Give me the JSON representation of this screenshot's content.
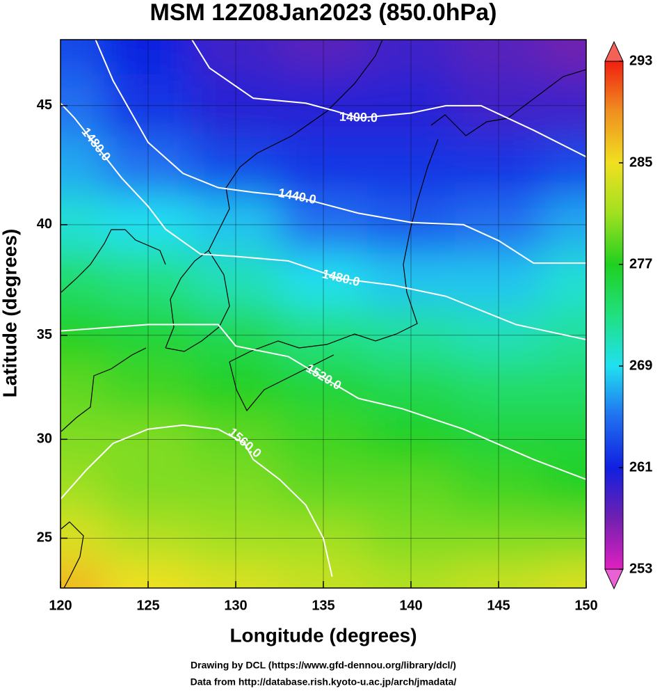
{
  "chart_data": {
    "type": "map",
    "title": "MSM 12Z08Jan2023 (850.0hPa)",
    "xlabel": "Longitude (degrees)",
    "ylabel": "Latitude  (degrees)",
    "footnotes": [
      "Drawing by DCL (https://www.gfd-dennou.org/library/dcl/)",
      "Data from http://database.rish.kyoto-u.ac.jp/arch/jmadata/"
    ],
    "projection": "mercator",
    "xlim": [
      120,
      150
    ],
    "ylim": [
      22.4,
      47.6
    ],
    "xticks": [
      120,
      125,
      130,
      135,
      140,
      145,
      150
    ],
    "yticks": [
      25,
      30,
      35,
      40,
      45
    ],
    "grid": true,
    "field": {
      "lons": [
        120,
        125,
        130,
        135,
        140,
        145,
        150
      ],
      "lats": [
        47.5,
        45,
        42.5,
        40,
        37.5,
        35,
        32.5,
        30,
        27.5,
        25,
        22.5
      ],
      "values": [
        [
          263,
          261,
          259,
          258,
          259,
          258,
          257
        ],
        [
          265,
          262,
          260,
          260,
          260,
          259,
          259
        ],
        [
          267,
          265,
          263,
          262,
          262,
          262,
          263
        ],
        [
          270,
          269,
          268,
          265,
          264,
          265,
          267
        ],
        [
          274,
          273,
          271,
          269,
          268,
          268,
          270
        ],
        [
          277,
          276,
          275,
          273,
          272,
          271,
          272
        ],
        [
          279,
          278,
          277,
          276,
          275,
          274,
          274
        ],
        [
          280,
          280,
          279,
          278,
          277,
          276,
          276
        ],
        [
          281,
          280,
          280,
          279,
          279,
          278,
          277
        ],
        [
          284,
          282,
          281,
          281,
          280,
          280,
          280
        ],
        [
          287,
          285,
          284,
          283,
          282,
          283,
          284
        ]
      ]
    },
    "colormap": [
      "#e020c0",
      "#7020b0",
      "#1020e0",
      "#2070f0",
      "#20e0f0",
      "#20e080",
      "#20d020",
      "#a0e020",
      "#f0e020",
      "#f09020",
      "#f02010"
    ],
    "colorbar_lim": [
      253,
      293
    ],
    "colorbar_ticks": [
      253,
      261,
      269,
      277,
      285,
      293
    ],
    "contour_color": "#ffffff",
    "contours": [
      {
        "level": 1400,
        "value_label": "1400.0",
        "x": [
          127.5,
          128.5,
          131,
          134,
          135.6,
          137,
          140,
          142,
          144,
          147,
          150
        ],
        "y": [
          47.6,
          46.5,
          45.3,
          45.1,
          44.8,
          44.5,
          44.7,
          45.0,
          45.0,
          44.0,
          42.9
        ]
      },
      {
        "level": 1440,
        "value_label": "1440.0",
        "x": [
          122,
          123,
          125,
          127,
          129,
          131,
          133.5,
          137,
          140,
          143,
          145,
          147,
          150
        ],
        "y": [
          47.6,
          46,
          43.5,
          42.2,
          41.6,
          41.4,
          41.2,
          40.5,
          40.1,
          40.0,
          39.3,
          38.3,
          38.3
        ]
      },
      {
        "level": 1480,
        "value_label": "1480.0",
        "x": [
          120,
          120.8,
          122,
          123.5,
          125
        ],
        "y": [
          45.1,
          44.5,
          43.4,
          42,
          40.8
        ]
      },
      {
        "level": 1480,
        "value_label": "1480.0",
        "x": [
          125,
          126,
          128,
          130,
          133,
          136,
          139,
          142,
          146,
          150
        ],
        "y": [
          40.8,
          39.8,
          38.7,
          38.6,
          38.4,
          37.6,
          37.3,
          36.8,
          35.5,
          34.8
        ]
      },
      {
        "level": 1520,
        "value_label": "1520.0",
        "x": [
          120,
          125,
          129,
          130,
          133,
          135,
          137,
          139.5,
          143,
          147,
          150
        ],
        "y": [
          35.2,
          35.5,
          35.5,
          34.5,
          34,
          33,
          32,
          31.5,
          30.5,
          29,
          28
        ]
      },
      {
        "level": 1560,
        "value_label": "1560.0",
        "x": [
          120,
          121.5,
          123,
          125,
          127,
          129,
          130.5,
          131,
          132.5,
          134,
          135,
          135.5
        ],
        "y": [
          27,
          28.5,
          29.8,
          30.5,
          30.7,
          30.5,
          29.8,
          29,
          28,
          26.7,
          25,
          23
        ]
      }
    ]
  }
}
